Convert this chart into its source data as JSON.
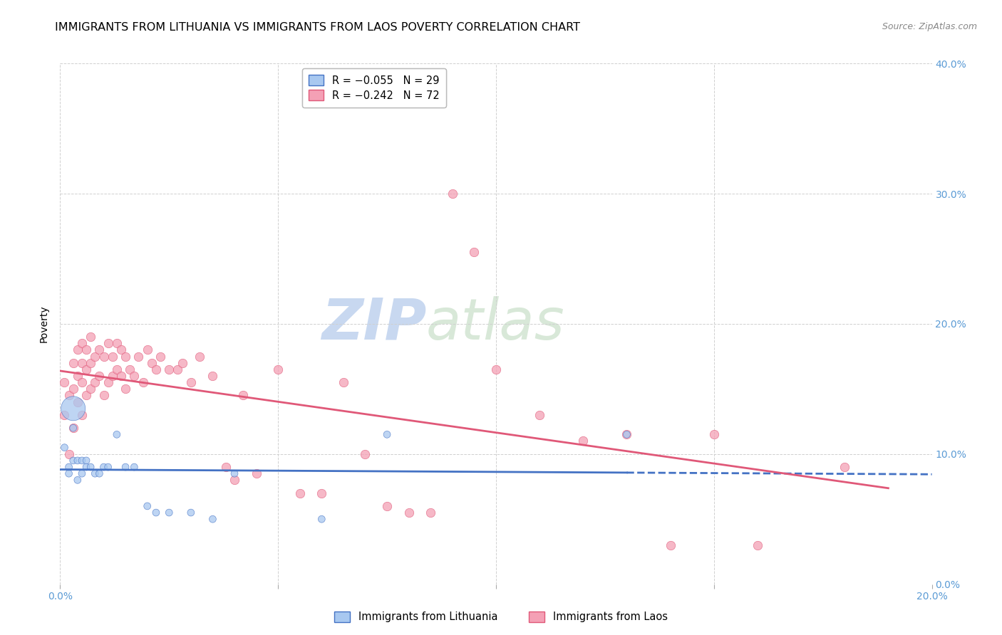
{
  "title": "IMMIGRANTS FROM LITHUANIA VS IMMIGRANTS FROM LAOS POVERTY CORRELATION CHART",
  "source": "Source: ZipAtlas.com",
  "ylabel": "Poverty",
  "xlim": [
    0.0,
    0.2
  ],
  "ylim": [
    0.0,
    0.4
  ],
  "watermark_zip": "ZIP",
  "watermark_atlas": "atlas",
  "lithuania_color": "#a8c8f0",
  "laos_color": "#f4a0b5",
  "lithuania_line_color": "#4472c4",
  "laos_line_color": "#e05878",
  "legend_label_lithuania": "R = −0.055   N = 29",
  "legend_label_laos": "R = −0.242   N = 72",
  "legend_bottom_lithuania": "Immigrants from Lithuania",
  "legend_bottom_laos": "Immigrants from Laos",
  "lithuania_x": [
    0.001,
    0.002,
    0.002,
    0.003,
    0.003,
    0.003,
    0.004,
    0.004,
    0.005,
    0.005,
    0.006,
    0.006,
    0.007,
    0.008,
    0.009,
    0.01,
    0.011,
    0.013,
    0.015,
    0.017,
    0.02,
    0.022,
    0.025,
    0.03,
    0.035,
    0.04,
    0.06,
    0.075,
    0.13
  ],
  "lithuania_y": [
    0.105,
    0.085,
    0.09,
    0.135,
    0.12,
    0.095,
    0.095,
    0.08,
    0.095,
    0.085,
    0.095,
    0.09,
    0.09,
    0.085,
    0.085,
    0.09,
    0.09,
    0.115,
    0.09,
    0.09,
    0.06,
    0.055,
    0.055,
    0.055,
    0.05,
    0.085,
    0.05,
    0.115,
    0.115
  ],
  "lithuania_sizes": [
    50,
    50,
    50,
    600,
    50,
    50,
    50,
    50,
    50,
    50,
    50,
    50,
    50,
    50,
    50,
    50,
    50,
    50,
    50,
    50,
    50,
    50,
    50,
    50,
    50,
    50,
    50,
    50,
    50
  ],
  "laos_x": [
    0.001,
    0.001,
    0.002,
    0.002,
    0.003,
    0.003,
    0.003,
    0.004,
    0.004,
    0.004,
    0.005,
    0.005,
    0.005,
    0.005,
    0.006,
    0.006,
    0.006,
    0.007,
    0.007,
    0.007,
    0.008,
    0.008,
    0.009,
    0.009,
    0.01,
    0.01,
    0.011,
    0.011,
    0.012,
    0.012,
    0.013,
    0.013,
    0.014,
    0.014,
    0.015,
    0.015,
    0.016,
    0.017,
    0.018,
    0.019,
    0.02,
    0.021,
    0.022,
    0.023,
    0.025,
    0.027,
    0.028,
    0.03,
    0.032,
    0.035,
    0.038,
    0.04,
    0.042,
    0.045,
    0.05,
    0.055,
    0.06,
    0.065,
    0.07,
    0.075,
    0.08,
    0.085,
    0.09,
    0.095,
    0.1,
    0.11,
    0.12,
    0.13,
    0.14,
    0.15,
    0.16,
    0.18
  ],
  "laos_y": [
    0.13,
    0.155,
    0.1,
    0.145,
    0.12,
    0.15,
    0.17,
    0.14,
    0.16,
    0.18,
    0.13,
    0.155,
    0.17,
    0.185,
    0.145,
    0.165,
    0.18,
    0.15,
    0.17,
    0.19,
    0.155,
    0.175,
    0.16,
    0.18,
    0.145,
    0.175,
    0.155,
    0.185,
    0.16,
    0.175,
    0.165,
    0.185,
    0.16,
    0.18,
    0.15,
    0.175,
    0.165,
    0.16,
    0.175,
    0.155,
    0.18,
    0.17,
    0.165,
    0.175,
    0.165,
    0.165,
    0.17,
    0.155,
    0.175,
    0.16,
    0.09,
    0.08,
    0.145,
    0.085,
    0.165,
    0.07,
    0.07,
    0.155,
    0.1,
    0.06,
    0.055,
    0.055,
    0.3,
    0.255,
    0.165,
    0.13,
    0.11,
    0.115,
    0.03,
    0.115,
    0.03,
    0.09
  ],
  "axis_color": "#5b9bd5",
  "grid_color": "#d0d0d0",
  "title_fontsize": 11.5,
  "source_fontsize": 9,
  "tick_fontsize": 10,
  "ylabel_fontsize": 10,
  "watermark_fontsize_zip": 58,
  "watermark_fontsize_atlas": 58
}
